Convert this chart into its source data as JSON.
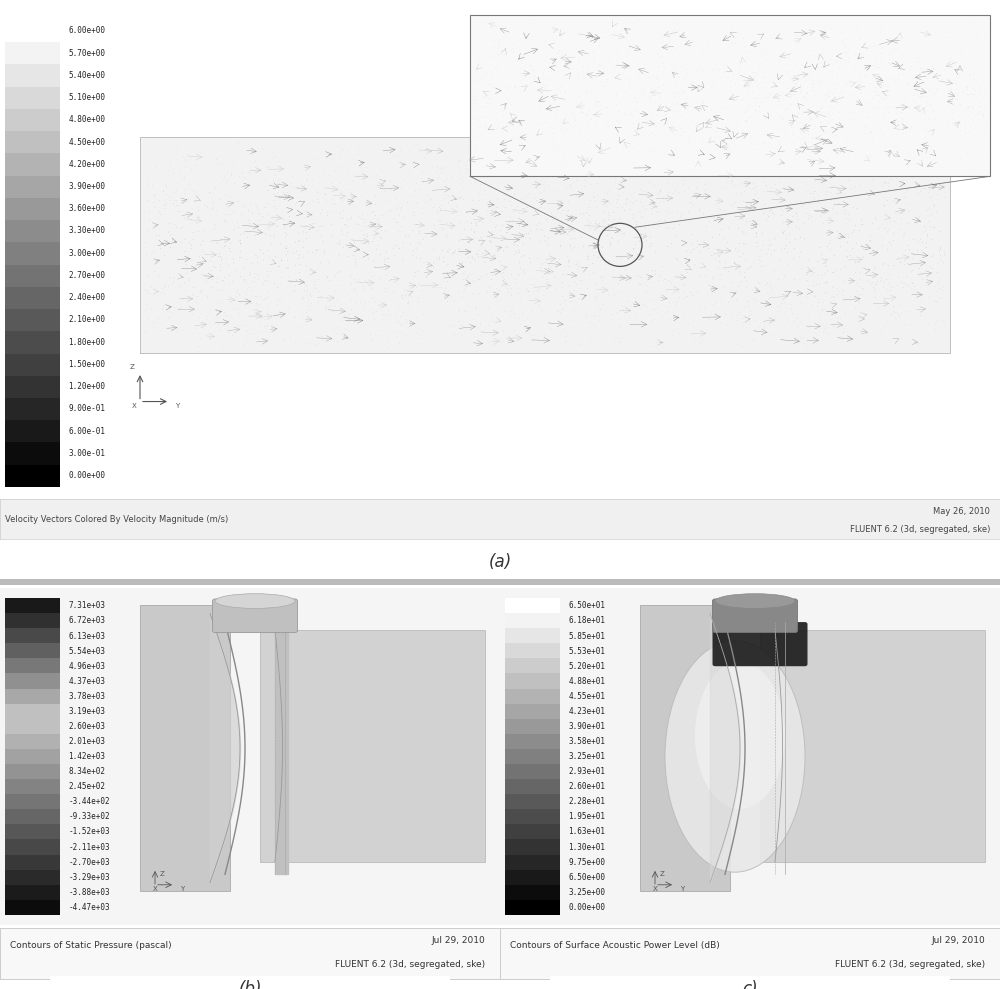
{
  "background_color": "#ffffff",
  "fig_width": 10.0,
  "fig_height": 9.89,
  "colorbar_a_labels": [
    "6.00e+00",
    "5.70e+00",
    "5.40e+00",
    "5.10e+00",
    "4.80e+00",
    "4.50e+00",
    "4.20e+00",
    "3.90e+00",
    "3.60e+00",
    "3.30e+00",
    "3.00e+00",
    "2.70e+00",
    "2.40e+00",
    "2.10e+00",
    "1.80e+00",
    "1.50e+00",
    "1.20e+00",
    "9.00e-01",
    "6.00e-01",
    "3.00e-01",
    "0.00e+00"
  ],
  "colorbar_b_labels": [
    "7.31e+03",
    "6.72e+03",
    "6.13e+03",
    "5.54e+03",
    "4.96e+03",
    "4.37e+03",
    "3.78e+03",
    "3.19e+03",
    "2.60e+03",
    "2.01e+03",
    "1.42e+03",
    "8.34e+02",
    "2.45e+02",
    "-3.44e+02",
    "-9.33e+02",
    "-1.52e+03",
    "-2.11e+03",
    "-2.70e+03",
    "-3.29e+03",
    "-3.88e+03",
    "-4.47e+03"
  ],
  "colorbar_c_labels": [
    "6.50e+01",
    "6.18e+01",
    "5.85e+01",
    "5.53e+01",
    "5.20e+01",
    "4.88e+01",
    "4.55e+01",
    "4.23e+01",
    "3.90e+01",
    "3.58e+01",
    "3.25e+01",
    "2.93e+01",
    "2.60e+01",
    "2.28e+01",
    "1.95e+01",
    "1.63e+01",
    "1.30e+01",
    "9.75e+00",
    "6.50e+00",
    "3.25e+00",
    "0.00e+00"
  ],
  "caption_a": "(a)",
  "caption_b": "(b)",
  "caption_c": "c)",
  "label_a_left": "Velocity Vectors Colored By Velocity Magnitude (m/s)",
  "label_a_right1": "May 26, 2010",
  "label_a_right2": "FLUENT 6.2 (3d, segregated, ske)",
  "label_b_left": "Contours of Static Pressure (pascal)",
  "label_b_right1": "Jul 29, 2010",
  "label_b_right2": "FLUENT 6.2 (3d, segregated, ske)",
  "label_c_left": "Contours of Surface Acoustic Power Level (dB)",
  "label_c_right1": "Jul 29, 2010",
  "label_c_right2": "FLUENT 6.2 (3d, segregated, ske)"
}
